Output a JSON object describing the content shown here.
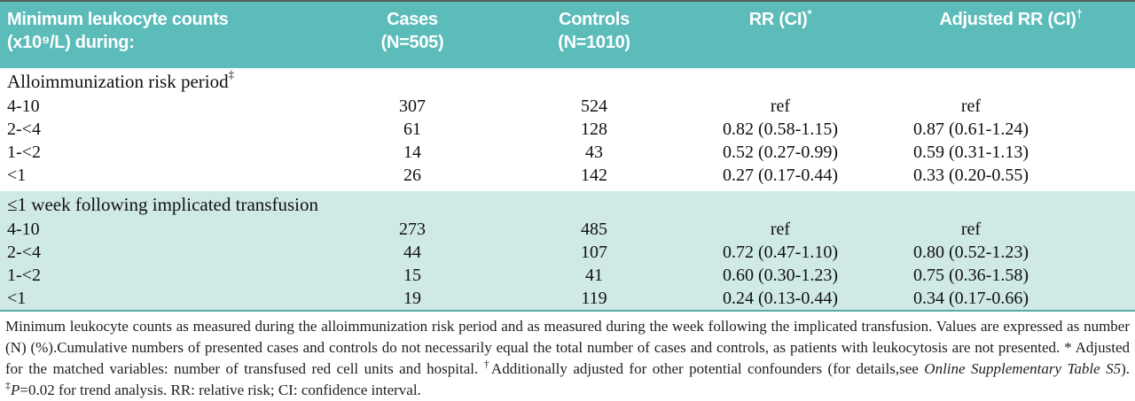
{
  "colors": {
    "header_bg": "#5cbcba",
    "alt_section_bg": "#cfe9e5",
    "header_text": "#ffffff",
    "body_text": "#111111",
    "bottom_rule": "#56a9a6"
  },
  "table": {
    "header": {
      "col1": {
        "line1": "Minimum leukocyte counts",
        "line2": "(x10⁹/L) during:"
      },
      "cases": {
        "line1": "Cases",
        "line2": "(N=505)"
      },
      "controls": {
        "line1": "Controls",
        "line2": "(N=1010)"
      },
      "rr": {
        "text": "RR (CI)",
        "sup": "*"
      },
      "adj_rr": {
        "text": "Adjusted RR (CI)",
        "sup": "†"
      }
    },
    "sections": [
      {
        "title": "Alloimmunization risk period",
        "title_sup": "‡",
        "rows": [
          {
            "label": "4-10",
            "cases": "307",
            "controls": "524",
            "rr": "ref",
            "adj_rr": "ref"
          },
          {
            "label": "2-<4",
            "cases": "61",
            "controls": "128",
            "rr": "0.82 (0.58-1.15)",
            "adj_rr": "0.87 (0.61-1.24)"
          },
          {
            "label": "1-<2",
            "cases": "14",
            "controls": "43",
            "rr": "0.52 (0.27-0.99)",
            "adj_rr": "0.59 (0.31-1.13)"
          },
          {
            "label": "<1",
            "cases": "26",
            "controls": "142",
            "rr": "0.27 (0.17-0.44)",
            "adj_rr": "0.33 (0.20-0.55)"
          }
        ]
      },
      {
        "title": "≤1 week following implicated transfusion",
        "title_sup": "",
        "rows": [
          {
            "label": "4-10",
            "cases": "273",
            "controls": "485",
            "rr": "ref",
            "adj_rr": "ref"
          },
          {
            "label": "2-<4",
            "cases": "44",
            "controls": "107",
            "rr": "0.72 (0.47-1.10)",
            "adj_rr": "0.80 (0.52-1.23)"
          },
          {
            "label": "1-<2",
            "cases": "15",
            "controls": "41",
            "rr": "0.60 (0.30-1.23)",
            "adj_rr": "0.75 (0.36-1.58)"
          },
          {
            "label": "<1",
            "cases": "19",
            "controls": "119",
            "rr": "0.24 (0.13-0.44)",
            "adj_rr": "0.34 (0.17-0.66)"
          }
        ]
      }
    ]
  },
  "footnote": {
    "segments": {
      "s0": "Minimum leukocyte counts as measured during the alloimmunization risk period and as measured during the week following the implicated transfusion. Values are expressed as number (N) (%).Cumulative numbers of presented cases and controls do not necessarily equal the total number of cases and controls, as patients with leukocytosis are not presented. * Adjusted for the matched variables: number of transfused red cell units and hospital. ",
      "s1": "†",
      "s2": "Additionally adjusted for other potential confounders (for details,see ",
      "s3": "Online Supplementary Table S5",
      "s4": "). ",
      "s5": "‡",
      "s6": "P",
      "s7": "=0.02 for trend analysis. RR: relative risk; CI: confidence interval."
    }
  }
}
